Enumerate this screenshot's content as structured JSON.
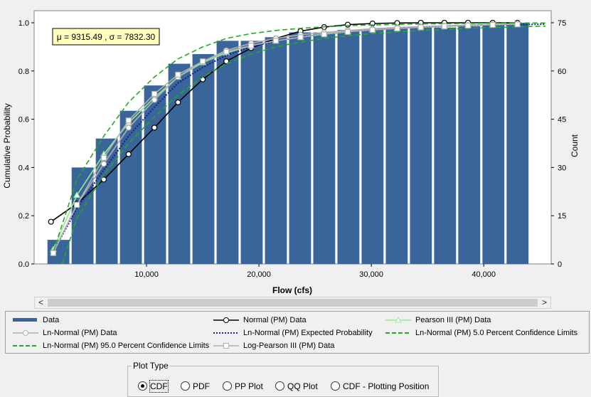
{
  "chart_data": {
    "type": "bar",
    "xlabel": "Flow (cfs)",
    "ylabel": "Cumulative Probability",
    "y2label": "Count",
    "xlim": [
      0,
      46000
    ],
    "ylim": [
      0,
      1.05
    ],
    "y2lim": [
      0,
      78.75
    ],
    "xticks": [
      10000,
      20000,
      30000,
      40000
    ],
    "xtick_labels": [
      "10,000",
      "20,000",
      "30,000",
      "40,000"
    ],
    "yticks": [
      0.0,
      0.2,
      0.4,
      0.6,
      0.8,
      1.0
    ],
    "ytick_labels": [
      "0.0",
      "0.2",
      "0.4",
      "0.6",
      "0.8",
      "1.0"
    ],
    "y2ticks": [
      0,
      15,
      30,
      45,
      60,
      75
    ],
    "y2tick_labels": [
      "0",
      "15",
      "30",
      "45",
      "60",
      "75"
    ],
    "bar_width": 1950,
    "annotation": "μ = 9315.49 , σ = 7832.30",
    "bars": {
      "x": [
        2160,
        4310,
        6460,
        8610,
        10760,
        12910,
        15060,
        17210,
        19360,
        21510,
        23660,
        25810,
        27960,
        30110,
        32260,
        34410,
        36560,
        38710,
        40860,
        43010
      ],
      "values": [
        0.1,
        0.4,
        0.52,
        0.635,
        0.74,
        0.83,
        0.87,
        0.925,
        0.925,
        0.94,
        0.96,
        0.96,
        0.97,
        0.97,
        0.975,
        0.98,
        0.98,
        0.985,
        0.99,
        1.0
      ]
    },
    "series": [
      {
        "name": "Normal (PM) Data",
        "color": "#000000",
        "marker": "circle",
        "dash": "solid",
        "x": [
          1500,
          3800,
          6200,
          8400,
          10700,
          12800,
          15000,
          17100,
          19300,
          21500,
          23700,
          25800,
          27900,
          30100,
          32300,
          34400,
          36500,
          38600,
          40800,
          43000
        ],
        "y": [
          0.175,
          0.25,
          0.35,
          0.455,
          0.565,
          0.67,
          0.765,
          0.84,
          0.895,
          0.935,
          0.965,
          0.982,
          0.992,
          0.997,
          0.999,
          1.0,
          1.0,
          1.0,
          1.0,
          1.0
        ]
      },
      {
        "name": "Pearson III (PM) Data",
        "color": "#90ee90",
        "marker": "triangle",
        "dash": "solid",
        "x": [
          1700,
          3800,
          6200,
          8400,
          10700,
          12800,
          15000,
          17100,
          19300,
          21500,
          23700,
          25800,
          27900,
          30100,
          32300,
          34400,
          36500,
          38600,
          40800,
          43000
        ],
        "y": [
          0.06,
          0.285,
          0.455,
          0.585,
          0.69,
          0.775,
          0.835,
          0.875,
          0.905,
          0.925,
          0.94,
          0.955,
          0.965,
          0.972,
          0.978,
          0.983,
          0.987,
          0.99,
          0.993,
          0.995
        ]
      },
      {
        "name": "Ln-Normal (PM) Data",
        "color": "#b0b0b0",
        "marker": "circle",
        "dash": "solid",
        "x": [
          1700,
          3800,
          6200,
          8400,
          10700,
          12800,
          15000,
          17100,
          19300,
          21500,
          23700,
          25800,
          27900,
          30100,
          32300,
          34400,
          36500,
          38600,
          40800,
          43000
        ],
        "y": [
          0.05,
          0.245,
          0.415,
          0.565,
          0.68,
          0.775,
          0.84,
          0.885,
          0.915,
          0.935,
          0.95,
          0.96,
          0.968,
          0.975,
          0.98,
          0.984,
          0.987,
          0.99,
          0.992,
          0.994
        ]
      },
      {
        "name": "Ln-Normal (PM) Expected Probability",
        "color": "#1a1a8c",
        "marker": "none",
        "dash": "dot",
        "x": [
          1700,
          3800,
          6200,
          8400,
          10700,
          12800,
          15000,
          17100,
          19300,
          21500,
          23700,
          25800,
          27900,
          30100,
          32300,
          34400,
          36500,
          38600,
          40800,
          43000,
          45500
        ],
        "y": [
          0.05,
          0.23,
          0.39,
          0.53,
          0.65,
          0.75,
          0.815,
          0.865,
          0.9,
          0.925,
          0.94,
          0.952,
          0.962,
          0.97,
          0.976,
          0.981,
          0.985,
          0.988,
          0.99,
          0.992,
          0.994
        ]
      },
      {
        "name": "Ln-Normal (PM) 5.0 Percent Confidence Limits",
        "color": "#22aa22",
        "marker": "none",
        "dash": "dash",
        "x": [
          2500,
          3800,
          6200,
          8400,
          10700,
          12800,
          15000,
          17100,
          19300,
          21500,
          23700,
          25800,
          27900,
          30100,
          32300,
          34400,
          36500,
          38600,
          40800,
          43000,
          45500
        ],
        "y": [
          0.0,
          0.19,
          0.37,
          0.5,
          0.61,
          0.7,
          0.775,
          0.83,
          0.87,
          0.9,
          0.92,
          0.935,
          0.946,
          0.955,
          0.962,
          0.968,
          0.973,
          0.977,
          0.98,
          0.983,
          0.986
        ]
      },
      {
        "name": "Ln-Normal (PM) 95.0 Percent Confidence Limits",
        "color": "#22aa22",
        "marker": "none",
        "dash": "dash",
        "x": [
          1700,
          3800,
          6200,
          8400,
          10700,
          12800,
          15000,
          17100,
          19300,
          21500,
          23700,
          25800,
          27900,
          30100,
          32300,
          34400,
          36500,
          38600,
          40800,
          43000,
          45500
        ],
        "y": [
          0.05,
          0.35,
          0.53,
          0.67,
          0.775,
          0.85,
          0.9,
          0.935,
          0.955,
          0.968,
          0.977,
          0.983,
          0.988,
          0.991,
          0.993,
          0.995,
          0.996,
          0.997,
          0.998,
          0.999,
          0.999
        ]
      },
      {
        "name": "Log-Pearson III (PM) Data",
        "color": "#b0b0b0",
        "marker": "square",
        "dash": "solid",
        "x": [
          1700,
          3800,
          6200,
          8400,
          10700,
          12800,
          15000,
          17100,
          19300,
          21500,
          23700,
          25800,
          27900,
          30100,
          32300,
          34400,
          36500,
          38600,
          40800,
          43000
        ],
        "y": [
          0.045,
          0.245,
          0.44,
          0.595,
          0.705,
          0.785,
          0.84,
          0.88,
          0.905,
          0.925,
          0.94,
          0.952,
          0.962,
          0.97,
          0.976,
          0.981,
          0.985,
          0.988,
          0.991,
          0.993
        ]
      }
    ]
  },
  "legend": {
    "items": [
      {
        "label": "Data",
        "color": "#3a659a",
        "kind": "bar"
      },
      {
        "label": "Normal (PM) Data",
        "color": "#000000",
        "kind": "line-circle"
      },
      {
        "label": "Pearson III (PM) Data",
        "color": "#90ee90",
        "kind": "line-triangle"
      },
      {
        "label": "Ln-Normal (PM) Data",
        "color": "#b0b0b0",
        "kind": "line-circle"
      },
      {
        "label": "Ln-Normal (PM) Expected Probability",
        "color": "#1a1a8c",
        "kind": "dot"
      },
      {
        "label": "Ln-Normal (PM) 5.0 Percent Confidence Limits",
        "color": "#22aa22",
        "kind": "dash"
      },
      {
        "label": "Ln-Normal (PM) 95.0 Percent Confidence Limits",
        "color": "#22aa22",
        "kind": "dash"
      },
      {
        "label": "Log-Pearson III (PM) Data",
        "color": "#b0b0b0",
        "kind": "line-square"
      }
    ]
  },
  "scrollbar": {
    "left_arrow": "<",
    "right_arrow": ">"
  },
  "plot_type": {
    "title": "Plot Type",
    "selected": "CDF",
    "options": [
      "CDF",
      "PDF",
      "PP Plot",
      "QQ Plot",
      "CDF - Plotting Position"
    ]
  },
  "colors": {
    "bar": "#3a659a",
    "plot_bg": "#ffffff",
    "annotation_bg": "#ffffc0"
  }
}
